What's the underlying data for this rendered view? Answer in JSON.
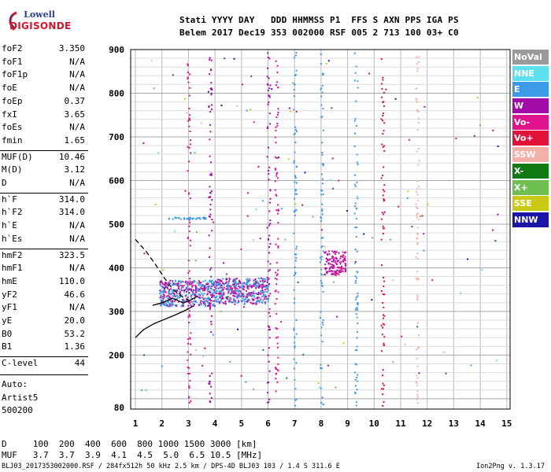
{
  "logo": {
    "line1": "Lowell",
    "line2": "DIGISONDE"
  },
  "header": {
    "row1": "Stati YYYY DAY   DDD HHMMSS P1  FFS S AXN PPS IGA PS",
    "row2": "Belem 2017 Dec19 353 002000 RSF 005 2 713 100 03+ C0"
  },
  "params": [
    {
      "label": "foF2",
      "value": "3.350"
    },
    {
      "label": "foF1",
      "value": "N/A"
    },
    {
      "label": "foF1p",
      "value": "N/A"
    },
    {
      "label": "foE",
      "value": "N/A"
    },
    {
      "label": "foEp",
      "value": "0.37"
    },
    {
      "label": "fxI",
      "value": "3.65"
    },
    {
      "label": "foEs",
      "value": "N/A"
    },
    {
      "label": "fmin",
      "value": "1.65"
    },
    {
      "label": "MUF(D)",
      "value": "10.46"
    },
    {
      "label": "M(D)",
      "value": "3.12"
    },
    {
      "label": "D",
      "value": "N/A"
    },
    {
      "label": "h`F",
      "value": "314.0"
    },
    {
      "label": "h`F2",
      "value": "314.0"
    },
    {
      "label": "h`E",
      "value": "N/A"
    },
    {
      "label": "h`Es",
      "value": "N/A"
    },
    {
      "label": "hmF2",
      "value": "323.5"
    },
    {
      "label": "hmF1",
      "value": "N/A"
    },
    {
      "label": "hmE",
      "value": "110.0"
    },
    {
      "label": "yF2",
      "value": "46.6"
    },
    {
      "label": "yF1",
      "value": "N/A"
    },
    {
      "label": "yE",
      "value": "20.0"
    },
    {
      "label": "B0",
      "value": "53.2"
    },
    {
      "label": "B1",
      "value": "1.36"
    },
    {
      "label": "C-level",
      "value": "44"
    }
  ],
  "artist": {
    "line1": "Auto:",
    "line2": "Artist5",
    "line3": "500200"
  },
  "legend": [
    {
      "label": "NoVal",
      "color": "#9a9a9a"
    },
    {
      "label": "NNE",
      "color": "#5fe0ef"
    },
    {
      "label": "E",
      "color": "#3c9be8"
    },
    {
      "label": "W",
      "color": "#a20aa8"
    },
    {
      "label": "Vo-",
      "color": "#e0138f"
    },
    {
      "label": "Vo+",
      "color": "#e0123a"
    },
    {
      "label": "SSW",
      "color": "#f2b0a8"
    },
    {
      "label": "X-",
      "color": "#127a12"
    },
    {
      "label": "X+",
      "color": "#70bf52"
    },
    {
      "label": "SSE",
      "color": "#c7c914"
    },
    {
      "label": "NNW",
      "color": "#1a14a8"
    }
  ],
  "footer": {
    "d_row": "D     100  200  400  600  800 1000 1500 3000 [km]",
    "muf_row": "MUF   3.7  3.7  3.9  4.1  4.5  5.0  6.5 10.5 [MHz]",
    "file_line": "BLJ03_2017353002000.RSF / 284fx512h 50 kHz 2.5 km / DPS-4D BLJ03 103 / 1.4 S 311.6 E",
    "version": "Ion2Png v. 1.3.17"
  },
  "chart_data": {
    "type": "scatter",
    "xlim": [
      1,
      15
    ],
    "ylim": [
      80,
      900
    ],
    "x_ticks": [
      "1",
      "2",
      "3",
      "4",
      "5",
      "6",
      "7",
      "8",
      "9",
      "10",
      "11",
      "12",
      "13",
      "14",
      "15"
    ],
    "y_ticks": [
      "80",
      "200",
      "300",
      "400",
      "500",
      "600",
      "700",
      "800",
      "900"
    ],
    "grid": true,
    "legend_position": "right",
    "traces": [
      {
        "name": "o-trace",
        "style": "solid",
        "points": [
          [
            1.0,
            240
          ],
          [
            1.3,
            258
          ],
          [
            1.7,
            272
          ],
          [
            2.1,
            282
          ],
          [
            2.5,
            292
          ],
          [
            2.9,
            303
          ],
          [
            3.2,
            313
          ]
        ]
      },
      {
        "name": "x-trace",
        "style": "dashed",
        "points": [
          [
            1.0,
            465
          ],
          [
            1.4,
            438
          ],
          [
            1.8,
            404
          ],
          [
            2.1,
            376
          ],
          [
            2.4,
            352
          ],
          [
            2.7,
            336
          ],
          [
            3.0,
            326
          ]
        ]
      },
      {
        "name": "f-trace",
        "style": "solid",
        "points": [
          [
            1.65,
            314
          ],
          [
            1.9,
            318
          ],
          [
            2.1,
            322
          ],
          [
            2.4,
            330
          ],
          [
            2.6,
            325
          ],
          [
            2.8,
            320
          ],
          [
            3.0,
            323.5
          ],
          [
            3.35,
            335
          ]
        ]
      }
    ]
  }
}
